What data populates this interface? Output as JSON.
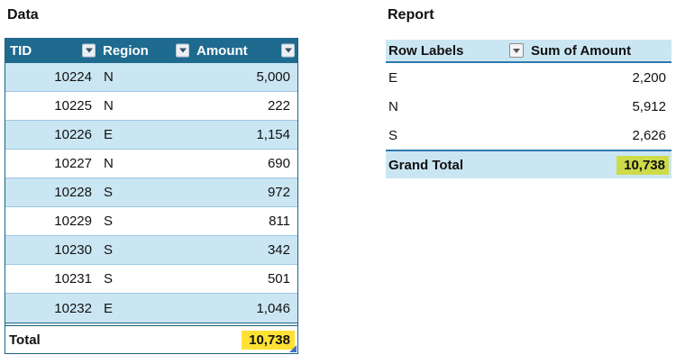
{
  "colors": {
    "table_header_bg": "#1F6A8F",
    "band_blue": "#CBE6F3",
    "row_border": "#9CC6E2",
    "outer_border": "#19638A",
    "pivot_accent": "#2E79AC",
    "highlight_yellow": "#FFE135",
    "highlight_green": "#CDDB49",
    "resize_handle_blue": "#4472C4"
  },
  "data_table": {
    "title": "Data",
    "columns": [
      {
        "label": "TID",
        "filter_icon": "filter-dropdown-icon"
      },
      {
        "label": "Region",
        "filter_icon": "filter-dropdown-icon"
      },
      {
        "label": "Amount",
        "filter_icon": "filter-dropdown-icon"
      }
    ],
    "rows": [
      {
        "tid": "10224",
        "region": "N",
        "amount": "5,000"
      },
      {
        "tid": "10225",
        "region": "N",
        "amount": "222"
      },
      {
        "tid": "10226",
        "region": "E",
        "amount": "1,154"
      },
      {
        "tid": "10227",
        "region": "N",
        "amount": "690"
      },
      {
        "tid": "10228",
        "region": "S",
        "amount": "972"
      },
      {
        "tid": "10229",
        "region": "S",
        "amount": "811"
      },
      {
        "tid": "10230",
        "region": "S",
        "amount": "342"
      },
      {
        "tid": "10231",
        "region": "S",
        "amount": "501"
      },
      {
        "tid": "10232",
        "region": "E",
        "amount": "1,046"
      }
    ],
    "total": {
      "label": "Total",
      "value": "10,738"
    }
  },
  "report_table": {
    "title": "Report",
    "columns": [
      {
        "label": "Row Labels",
        "filter_icon": "filter-dropdown-icon"
      },
      {
        "label": "Sum of Amount"
      }
    ],
    "rows": [
      {
        "label": "E",
        "value": "2,200"
      },
      {
        "label": "N",
        "value": "5,912"
      },
      {
        "label": "S",
        "value": "2,626"
      }
    ],
    "grand_total": {
      "label": "Grand Total",
      "value": "10,738"
    }
  }
}
